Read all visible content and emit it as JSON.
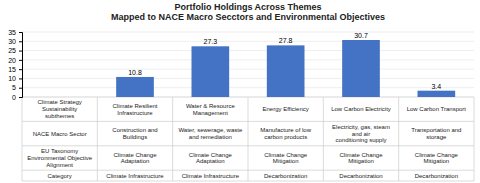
{
  "chart_data": {
    "type": "bar",
    "title": "Portfolio Holdings Across Themes\nMapped to NACE Macro Secctors and Environmental Objectives",
    "categories": [
      "Climate Strategy Sustainability\nsubthemes",
      "Climate Resilient Infrastructure",
      "Water & Resource Management",
      "Energy Efficiency",
      "Low Carbon Electricity",
      "Low Carbon Transport"
    ],
    "values": [
      0,
      10.8,
      27.3,
      27.8,
      30.7,
      3.4
    ],
    "color": "#4472C4",
    "ylim": [
      0,
      35
    ],
    "yticks": [
      0,
      5,
      10,
      15,
      20,
      25,
      30,
      35
    ],
    "grid": true,
    "data_labels": true,
    "tick_labels": "y",
    "table_rows": [
      [
        "NACE Macro Sector",
        "Construction and Buildings",
        "Water, sewerage, waste and remediation",
        "Manufacture of low carbon products",
        "Electricity, gas, steam and air\nconditioning supply",
        "Transportation and storage"
      ],
      [
        "EU Taxonomy Environmental Objective\nAlignment",
        "Climate Change Adaptation",
        "Climate Change Adaptation",
        "Climate Change Mitigation",
        "Climate Change Mitigation",
        "Climate Change Mitigation"
      ],
      [
        "Category",
        "Climate Infrastructure",
        "Climate Infrastructure",
        "Decarbonization",
        "Decarbonization",
        "Decarbonization"
      ]
    ]
  }
}
